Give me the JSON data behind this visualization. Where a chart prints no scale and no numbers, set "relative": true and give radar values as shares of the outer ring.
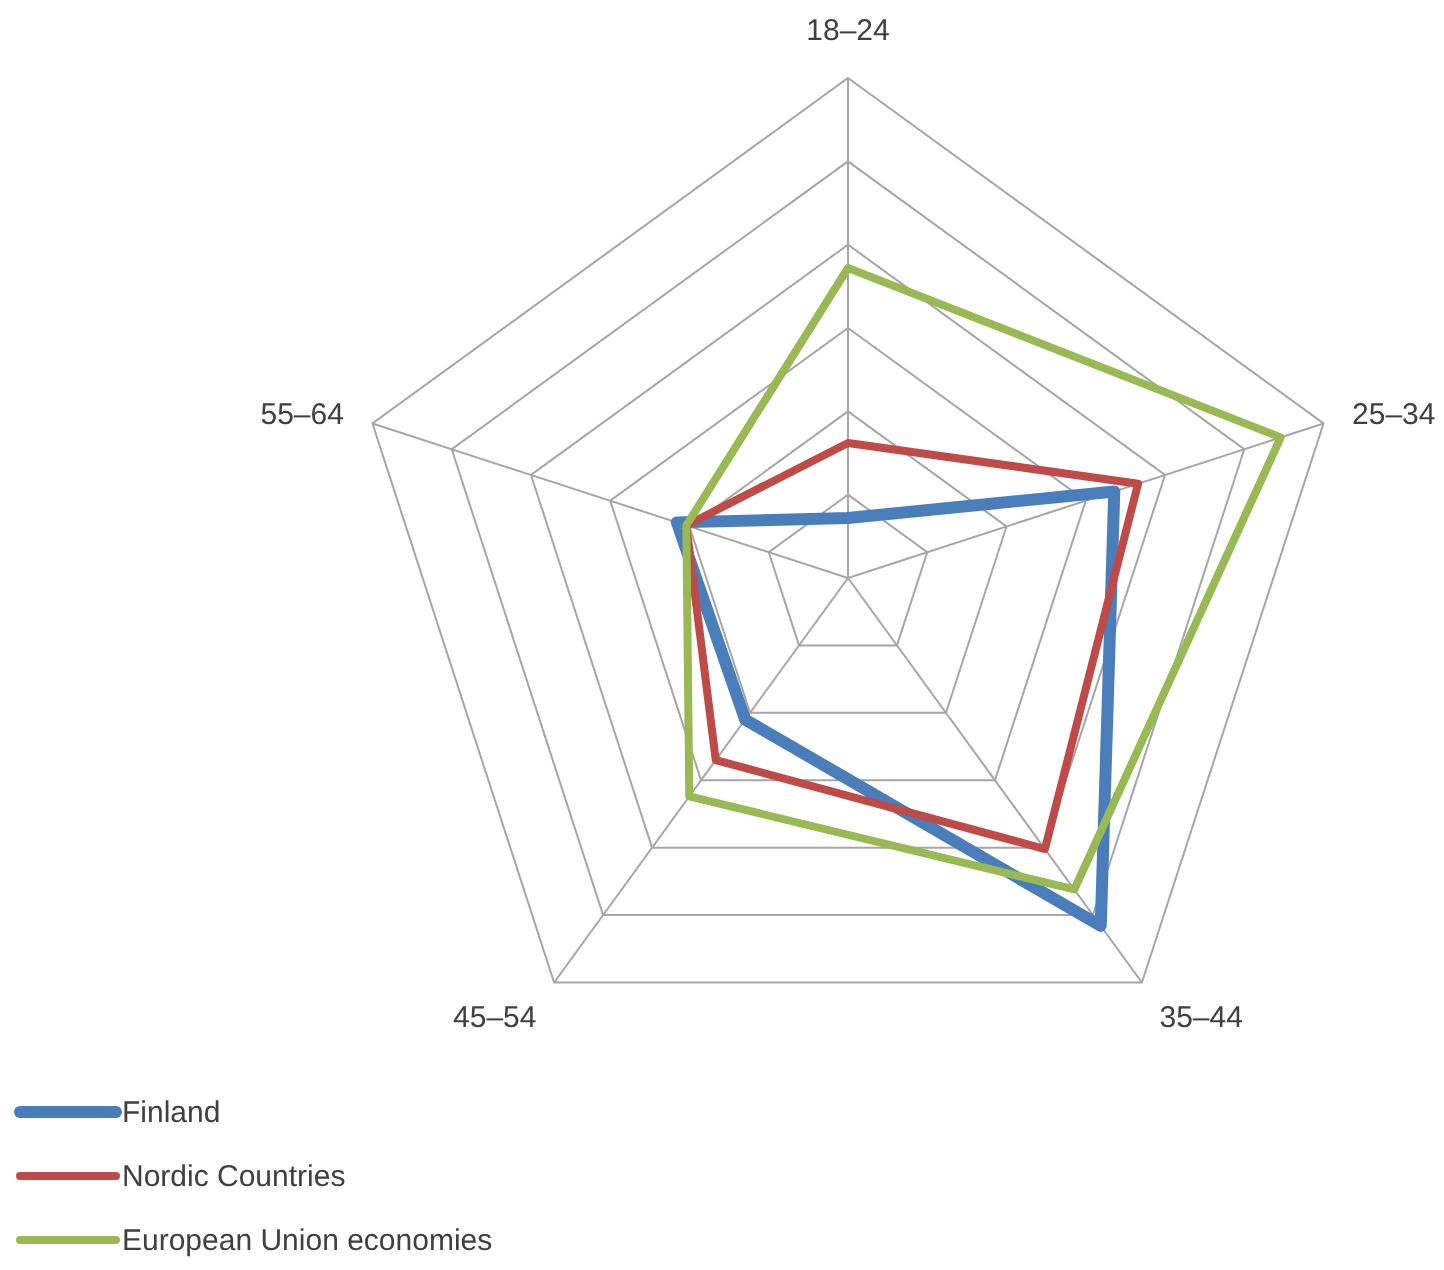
{
  "chart_data": {
    "type": "radar",
    "relative": true,
    "grid": true,
    "legend": "bottom left",
    "categories": [
      "18–24",
      "25–34",
      "35–44",
      "45–54",
      "55–64"
    ],
    "series": [
      {
        "name": "Finland",
        "color": "#4a7ebb",
        "values": [
          0.12,
          0.56,
          0.86,
          0.35,
          0.36
        ]
      },
      {
        "name": "Nordic Countries",
        "color": "#be4b48",
        "values": [
          0.27,
          0.61,
          0.67,
          0.45,
          0.34
        ]
      },
      {
        "name": "European Union economies",
        "color": "#98b954",
        "values": [
          0.62,
          0.91,
          0.77,
          0.54,
          0.34
        ]
      }
    ]
  }
}
